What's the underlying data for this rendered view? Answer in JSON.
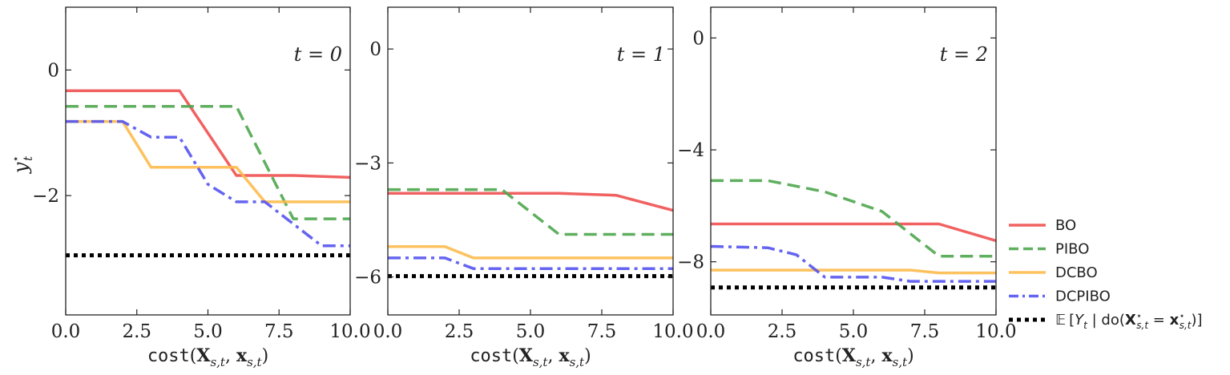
{
  "chart_data": [
    {
      "type": "line",
      "title": "t = 0",
      "xlabel": "cost(X_{s,t}, x_{s,t})",
      "ylabel": "y*_t",
      "xlim": [
        0,
        10
      ],
      "ylim": [
        -3.9,
        1.0
      ],
      "xticks": [
        0,
        2.5,
        5,
        7.5,
        10
      ],
      "xtick_labels": [
        "0.0",
        "2.5",
        "5.0",
        "7.5",
        "10.0"
      ],
      "yticks": [
        0,
        -2
      ],
      "ytick_labels": [
        "0",
        "−2"
      ],
      "series": [
        {
          "name": "BO",
          "x": [
            0,
            4,
            6,
            8,
            10
          ],
          "y": [
            -0.33,
            -0.33,
            -1.68,
            -1.68,
            -1.71
          ]
        },
        {
          "name": "PIBO",
          "x": [
            0,
            6,
            8,
            10
          ],
          "y": [
            -0.58,
            -0.58,
            -2.37,
            -2.37
          ]
        },
        {
          "name": "DCBO",
          "x": [
            0,
            2,
            3,
            6,
            7,
            10
          ],
          "y": [
            -0.82,
            -0.82,
            -1.55,
            -1.55,
            -2.1,
            -2.1
          ]
        },
        {
          "name": "DCPIBO",
          "x": [
            0,
            2,
            3,
            4,
            5,
            6,
            7,
            8,
            9,
            10
          ],
          "y": [
            -0.82,
            -0.82,
            -1.07,
            -1.07,
            -1.82,
            -2.1,
            -2.1,
            -2.45,
            -2.8,
            -2.8
          ]
        },
        {
          "name": "E[Y_t | do(X*_{s,t} = x*_{s,t})]",
          "x": [
            0,
            10
          ],
          "y": [
            -2.95,
            -2.95
          ]
        }
      ]
    },
    {
      "type": "line",
      "title": "t = 1",
      "xlabel": "cost(X_{s,t}, x_{s,t})",
      "xlim": [
        0,
        10
      ],
      "ylim": [
        -7.0,
        1.1
      ],
      "xticks": [
        0,
        2.5,
        5,
        7.5,
        10
      ],
      "xtick_labels": [
        "0.0",
        "2.5",
        "5.0",
        "7.5",
        "10.0"
      ],
      "yticks": [
        0,
        -3,
        -6
      ],
      "ytick_labels": [
        "0",
        "−3",
        "−6"
      ],
      "series": [
        {
          "name": "BO",
          "x": [
            0,
            6,
            8,
            10
          ],
          "y": [
            -3.8,
            -3.8,
            -3.85,
            -4.25
          ]
        },
        {
          "name": "PIBO",
          "x": [
            0,
            4,
            6,
            10
          ],
          "y": [
            -3.7,
            -3.7,
            -4.88,
            -4.88
          ]
        },
        {
          "name": "DCBO",
          "x": [
            0,
            2,
            3,
            10
          ],
          "y": [
            -5.2,
            -5.2,
            -5.5,
            -5.5
          ]
        },
        {
          "name": "DCPIBO",
          "x": [
            0,
            2,
            3,
            10
          ],
          "y": [
            -5.5,
            -5.5,
            -5.78,
            -5.78
          ]
        },
        {
          "name": "E[Y_t | do(X*_{s,t} = x*_{s,t})]",
          "x": [
            0,
            10
          ],
          "y": [
            -5.98,
            -5.98
          ]
        }
      ]
    },
    {
      "type": "line",
      "title": "t = 2",
      "xlabel": "cost(X_{s,t}, x_{s,t})",
      "xlim": [
        0,
        10
      ],
      "ylim": [
        -9.9,
        1.1
      ],
      "xticks": [
        0,
        2.5,
        5,
        7.5,
        10
      ],
      "xtick_labels": [
        "0.0",
        "2.5",
        "5.0",
        "7.5",
        "10.0"
      ],
      "yticks": [
        0,
        -4,
        -8
      ],
      "ytick_labels": [
        "0",
        "−4",
        "−8"
      ],
      "series": [
        {
          "name": "BO",
          "x": [
            0,
            8,
            10
          ],
          "y": [
            -6.65,
            -6.65,
            -7.25
          ]
        },
        {
          "name": "PIBO",
          "x": [
            0,
            2,
            4,
            6,
            8,
            10
          ],
          "y": [
            -5.1,
            -5.1,
            -5.5,
            -6.2,
            -7.8,
            -7.8
          ]
        },
        {
          "name": "DCBO",
          "x": [
            0,
            7,
            8,
            10
          ],
          "y": [
            -8.3,
            -8.3,
            -8.4,
            -8.4
          ]
        },
        {
          "name": "DCPIBO",
          "x": [
            0,
            2,
            3,
            4,
            6,
            7,
            10
          ],
          "y": [
            -7.45,
            -7.5,
            -7.75,
            -8.55,
            -8.55,
            -8.7,
            -8.7
          ]
        },
        {
          "name": "E[Y_t | do(X*_{s,t} = x*_{s,t})]",
          "x": [
            0,
            10
          ],
          "y": [
            -8.92,
            -8.92
          ]
        }
      ]
    }
  ],
  "legend": {
    "placement": "right",
    "entries": [
      {
        "name": "BO",
        "color": "#f05050",
        "style": "solid"
      },
      {
        "name": "PIBO",
        "color": "#4ea64e",
        "style": "dashed"
      },
      {
        "name": "DCBO",
        "color": "#fdbb4e",
        "style": "solid"
      },
      {
        "name": "DCPIBO",
        "color": "#5353f0",
        "style": "dashdot"
      },
      {
        "name": "E[Y_t | do(X*_{s,t} = x*_{s,t})]",
        "color": "#000000",
        "style": "dotted"
      }
    ]
  }
}
